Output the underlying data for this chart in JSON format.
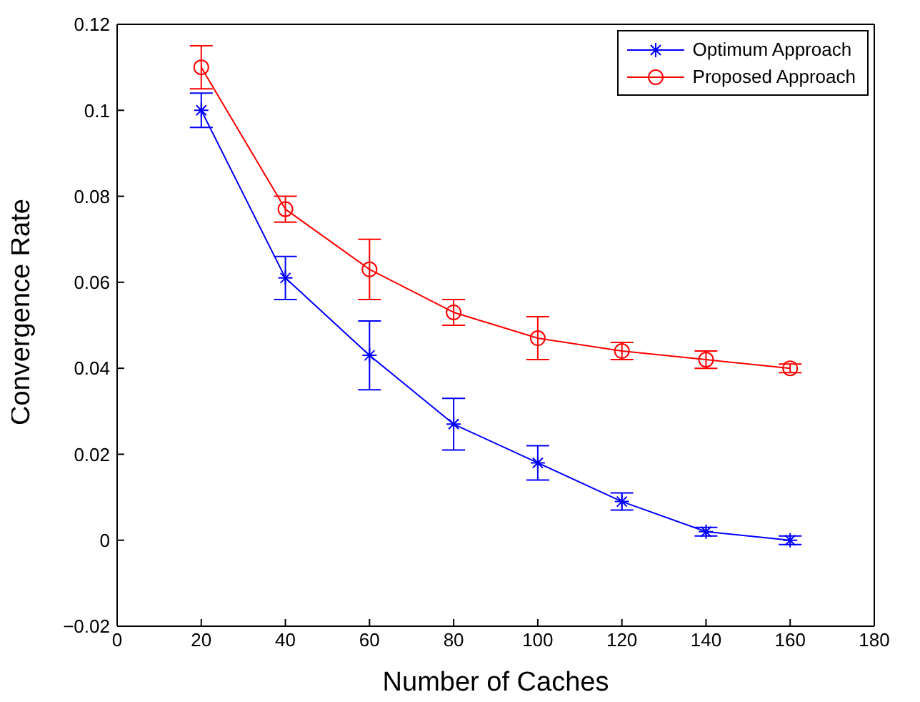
{
  "chart_data": {
    "type": "line",
    "xlabel": "Number of Caches",
    "ylabel": "Convergence Rate",
    "x": [
      20,
      40,
      60,
      80,
      100,
      120,
      140,
      160
    ],
    "xlim": [
      0,
      180
    ],
    "xticks": [
      0,
      20,
      40,
      60,
      80,
      100,
      120,
      140,
      160,
      180
    ],
    "ylim": [
      -0.02,
      0.12
    ],
    "yticks": [
      {
        "value": -0.02,
        "label": "−0.02"
      },
      0,
      0.02,
      0.04,
      0.06,
      0.08,
      0.1,
      0.12
    ],
    "grid": false,
    "legend": "top right",
    "line_style": "solid",
    "series": [
      {
        "name": "Optimum Approach",
        "color": "#0000ff",
        "marker": "cross",
        "values": [
          0.1,
          0.061,
          0.043,
          0.027,
          0.018,
          0.009,
          0.002,
          0.0
        ],
        "errors": [
          0.004,
          0.005,
          0.008,
          0.006,
          0.004,
          0.002,
          0.001,
          0.001
        ]
      },
      {
        "name": "Proposed Approach",
        "color": "#ff0000",
        "marker": "circle",
        "values": [
          0.11,
          0.077,
          0.063,
          0.053,
          0.047,
          0.044,
          0.042,
          0.04
        ],
        "errors": [
          0.005,
          0.003,
          0.007,
          0.003,
          0.005,
          0.002,
          0.002,
          0.001
        ]
      }
    ]
  }
}
